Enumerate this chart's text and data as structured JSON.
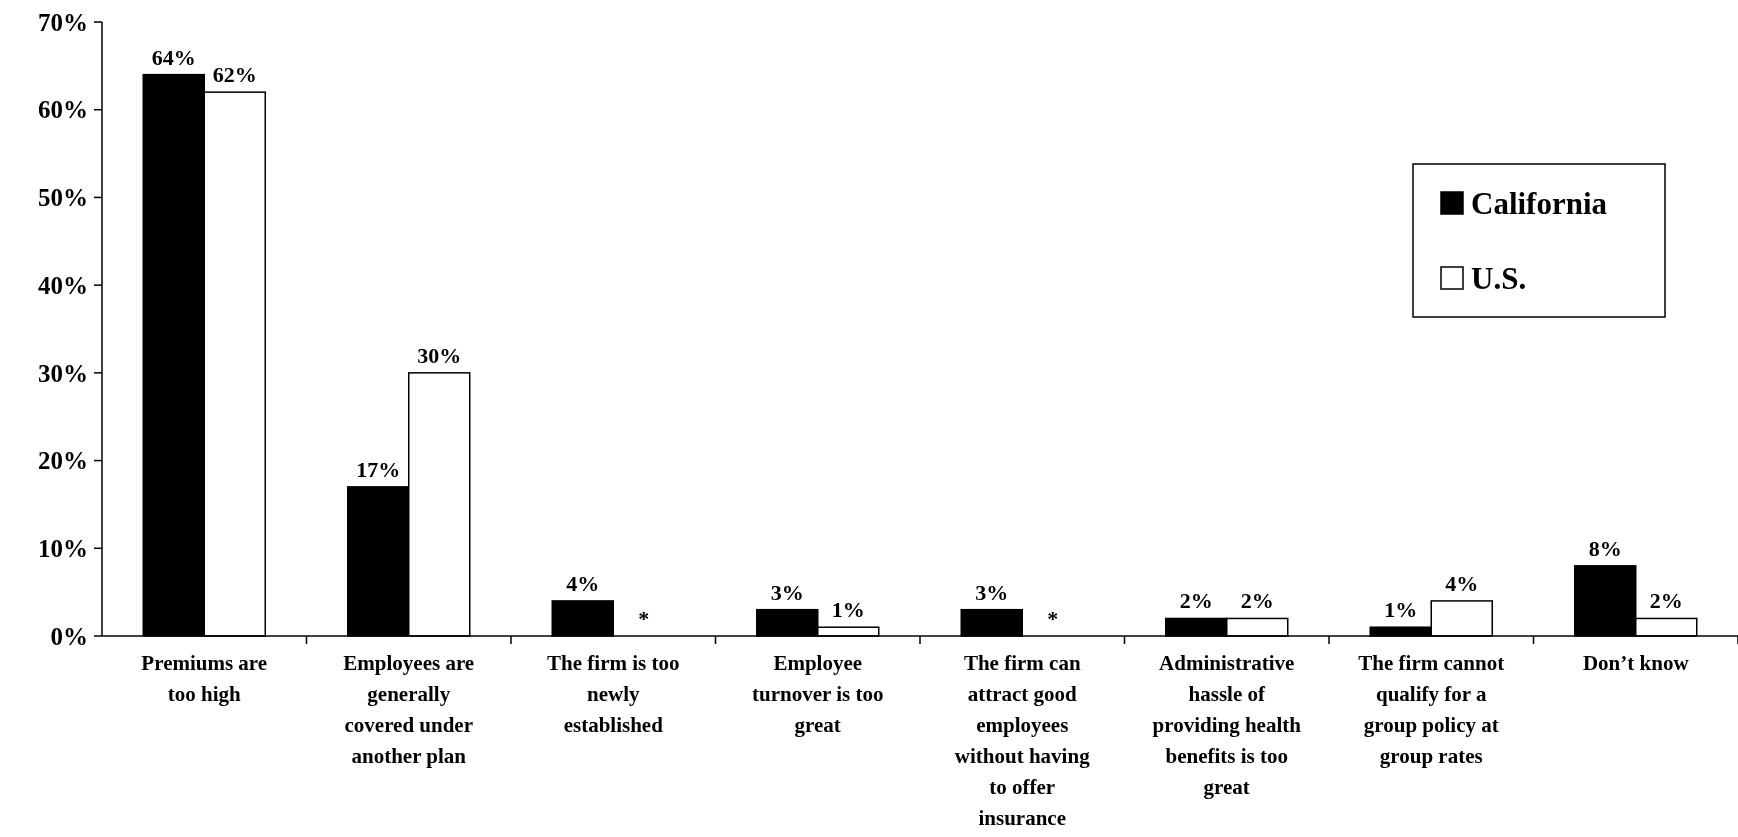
{
  "chart_data": {
    "type": "bar",
    "categories": [
      "Premiums are too high",
      "Employees are generally covered under another plan",
      "The firm is too newly established",
      "Employee turnover is too great",
      "The firm can attract good employees without having to offer insurance",
      "Administrative hassle of providing health benefits is too great",
      "The firm cannot qualify for a group policy at group rates",
      "Don’t know"
    ],
    "series": [
      {
        "name": "California",
        "color": "#000000",
        "values": [
          64,
          17,
          4,
          3,
          3,
          2,
          1,
          8
        ],
        "value_labels": [
          "64%",
          "17%",
          "4%",
          "3%",
          "3%",
          "2%",
          "1%",
          "8%"
        ]
      },
      {
        "name": "U.S.",
        "color": "#ffffff",
        "values": [
          62,
          30,
          null,
          1,
          null,
          2,
          4,
          2
        ],
        "value_labels": [
          "62%",
          "30%",
          "*",
          "1%",
          "*",
          "2%",
          "4%",
          "2%"
        ]
      }
    ],
    "ylim": [
      0,
      70
    ],
    "yticks": [
      {
        "value": 0,
        "label": "0%"
      },
      {
        "value": 10,
        "label": "10%"
      },
      {
        "value": 20,
        "label": "20%"
      },
      {
        "value": 30,
        "label": "30%"
      },
      {
        "value": 40,
        "label": "40%"
      },
      {
        "value": 50,
        "label": "50%"
      },
      {
        "value": 60,
        "label": "60%"
      },
      {
        "value": 70,
        "label": "70%"
      }
    ],
    "grid": false,
    "legend": "top right"
  }
}
